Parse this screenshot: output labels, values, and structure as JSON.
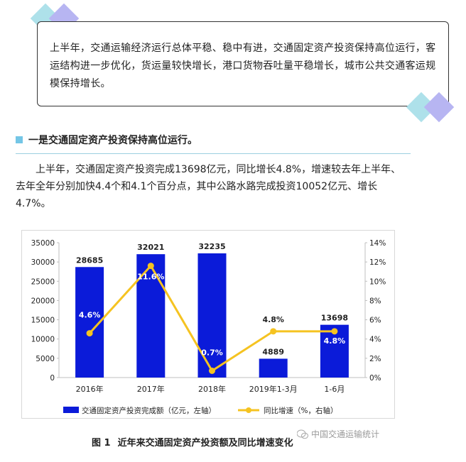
{
  "summary": {
    "text": "上半年，交通运输经济运行总体平稳、稳中有进，交通固定资产投资保持高位运行，客运结构进一步优化，货运量较快增长，港口货物吞吐量平稳增长，城市公共交通客运规模保持增长。"
  },
  "section": {
    "heading": "一是交通固定资产投资保持高位运行。",
    "paragraph": "上半年，交通固定资产投资完成13698亿元，同比增长4.8%，增速较去年上半年、去年全年分别加快4.4个和4.1个百分点，其中公路水路完成投资10052亿元、增长4.7%。"
  },
  "colors": {
    "bar": "#0b1bd9",
    "line": "#f5c321",
    "accent_blue": "#74c6e6",
    "accent_purple": "#a9a6ee"
  },
  "chart_data": {
    "type": "bar",
    "categories": [
      "2016年",
      "2017年",
      "2018年",
      "2019年1-3月",
      "1-6月"
    ],
    "series": [
      {
        "name": "交通固定资产投资完成额（亿元，左轴）",
        "type": "bar",
        "axis": "left",
        "values": [
          28685,
          32021,
          32235,
          4889,
          13698
        ],
        "labels": [
          "28685",
          "32021",
          "32235",
          "4889",
          "13698"
        ]
      },
      {
        "name": "同比增速（%，右轴）",
        "type": "line",
        "axis": "right",
        "values": [
          4.6,
          11.6,
          0.7,
          4.8,
          4.8
        ],
        "labels": [
          "4.6%",
          "11.6%",
          "0.7%",
          "4.8%",
          "4.8%"
        ]
      }
    ],
    "ylim": [
      0,
      35000
    ],
    "y2lim": [
      0,
      14
    ],
    "yticks": [
      "0",
      "5000",
      "10000",
      "15000",
      "20000",
      "25000",
      "30000",
      "35000"
    ],
    "y2ticks": [
      "0%",
      "2%",
      "4%",
      "6%",
      "8%",
      "10%",
      "12%",
      "14%"
    ],
    "grid": false,
    "legend": "bottom"
  },
  "caption": {
    "figure_no": "图 1",
    "title": "近年来交通固定资产投资额及同比增速变化"
  },
  "watermark": {
    "text": "中国交通运输统计"
  }
}
